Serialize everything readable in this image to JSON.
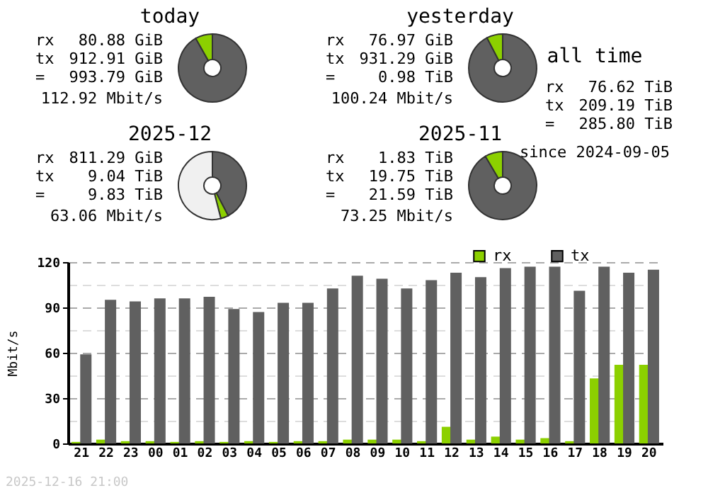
{
  "chart_data": [
    {
      "type": "donut",
      "title": "today",
      "categories": [
        null,
        null
      ],
      "values": [
        91.86,
        8.14
      ],
      "colors": [
        "#606060",
        "#8cd000"
      ],
      "annotations": [
        "rx 80.88 GiB",
        "tx 912.91 GiB",
        "= 993.79 GiB",
        "112.92 Mbit/s"
      ]
    },
    {
      "type": "donut",
      "title": "yesterday",
      "categories": [
        null,
        null
      ],
      "values": [
        92.37,
        7.63
      ],
      "colors": [
        "#606060",
        "#8cd000"
      ],
      "annotations": [
        "rx 76.97 GiB",
        "tx 931.29 GiB",
        "= 0.98 TiB",
        "100.24 Mbit/s"
      ]
    },
    {
      "type": "other",
      "title": "all time",
      "annotations": [
        "rx 76.62 TiB",
        "tx 209.19 TiB",
        "= 285.80 TiB",
        "since 2024-09-05"
      ]
    },
    {
      "type": "donut",
      "title": "2025-12",
      "categories": [
        null,
        null,
        null
      ],
      "values": [
        42.3,
        3.7,
        54
      ],
      "colors": [
        "#606060",
        "#8cd000",
        "#f0f0f0"
      ],
      "annotations": [
        "rx 811.29 GiB",
        "tx 9.04 TiB",
        "= 9.83 TiB",
        "63.06 Mbit/s"
      ]
    },
    {
      "type": "donut",
      "title": "2025-11",
      "categories": [
        null,
        null
      ],
      "values": [
        91.52,
        8.48
      ],
      "colors": [
        "#606060",
        "#8cd000"
      ],
      "annotations": [
        "rx 1.83 TiB",
        "tx 19.75 TiB",
        "= 21.59 TiB",
        "73.25 Mbit/s"
      ]
    },
    {
      "type": "bar",
      "categories": [
        "21",
        "22",
        "23",
        "00",
        "01",
        "02",
        "03",
        "04",
        "05",
        "06",
        "07",
        "08",
        "09",
        "10",
        "11",
        "12",
        "13",
        "14",
        "15",
        "16",
        "17",
        "18",
        "19",
        "20"
      ],
      "series": [
        {
          "name": "rx",
          "color": "#8cd000",
          "values": [
            1,
            2.5,
            1.5,
            1.5,
            1,
            1.5,
            1,
            1.5,
            1,
            1.5,
            1.5,
            2.5,
            2.5,
            2.5,
            1.5,
            11,
            2.5,
            4.5,
            2.5,
            3.5,
            1.5,
            43,
            52,
            52
          ]
        },
        {
          "name": "tx",
          "color": "#606060",
          "values": [
            59,
            95,
            94,
            96,
            96,
            97,
            89,
            87,
            93,
            93,
            102.5,
            111,
            109,
            102.5,
            108,
            113,
            110,
            116,
            117,
            117,
            101,
            117,
            113,
            115
          ]
        }
      ],
      "ylabel": "Mbit/s",
      "ylim": [
        0,
        120
      ],
      "yticks": [
        0,
        {
          "value": 15,
          "label": null
        },
        30,
        {
          "value": 45,
          "label": null
        },
        60,
        {
          "value": 75,
          "label": null
        },
        90,
        {
          "value": 105,
          "label": null
        },
        120
      ],
      "grid": "y",
      "legend": "top right",
      "annotations": [
        "2025-12-16 21:00"
      ]
    }
  ]
}
